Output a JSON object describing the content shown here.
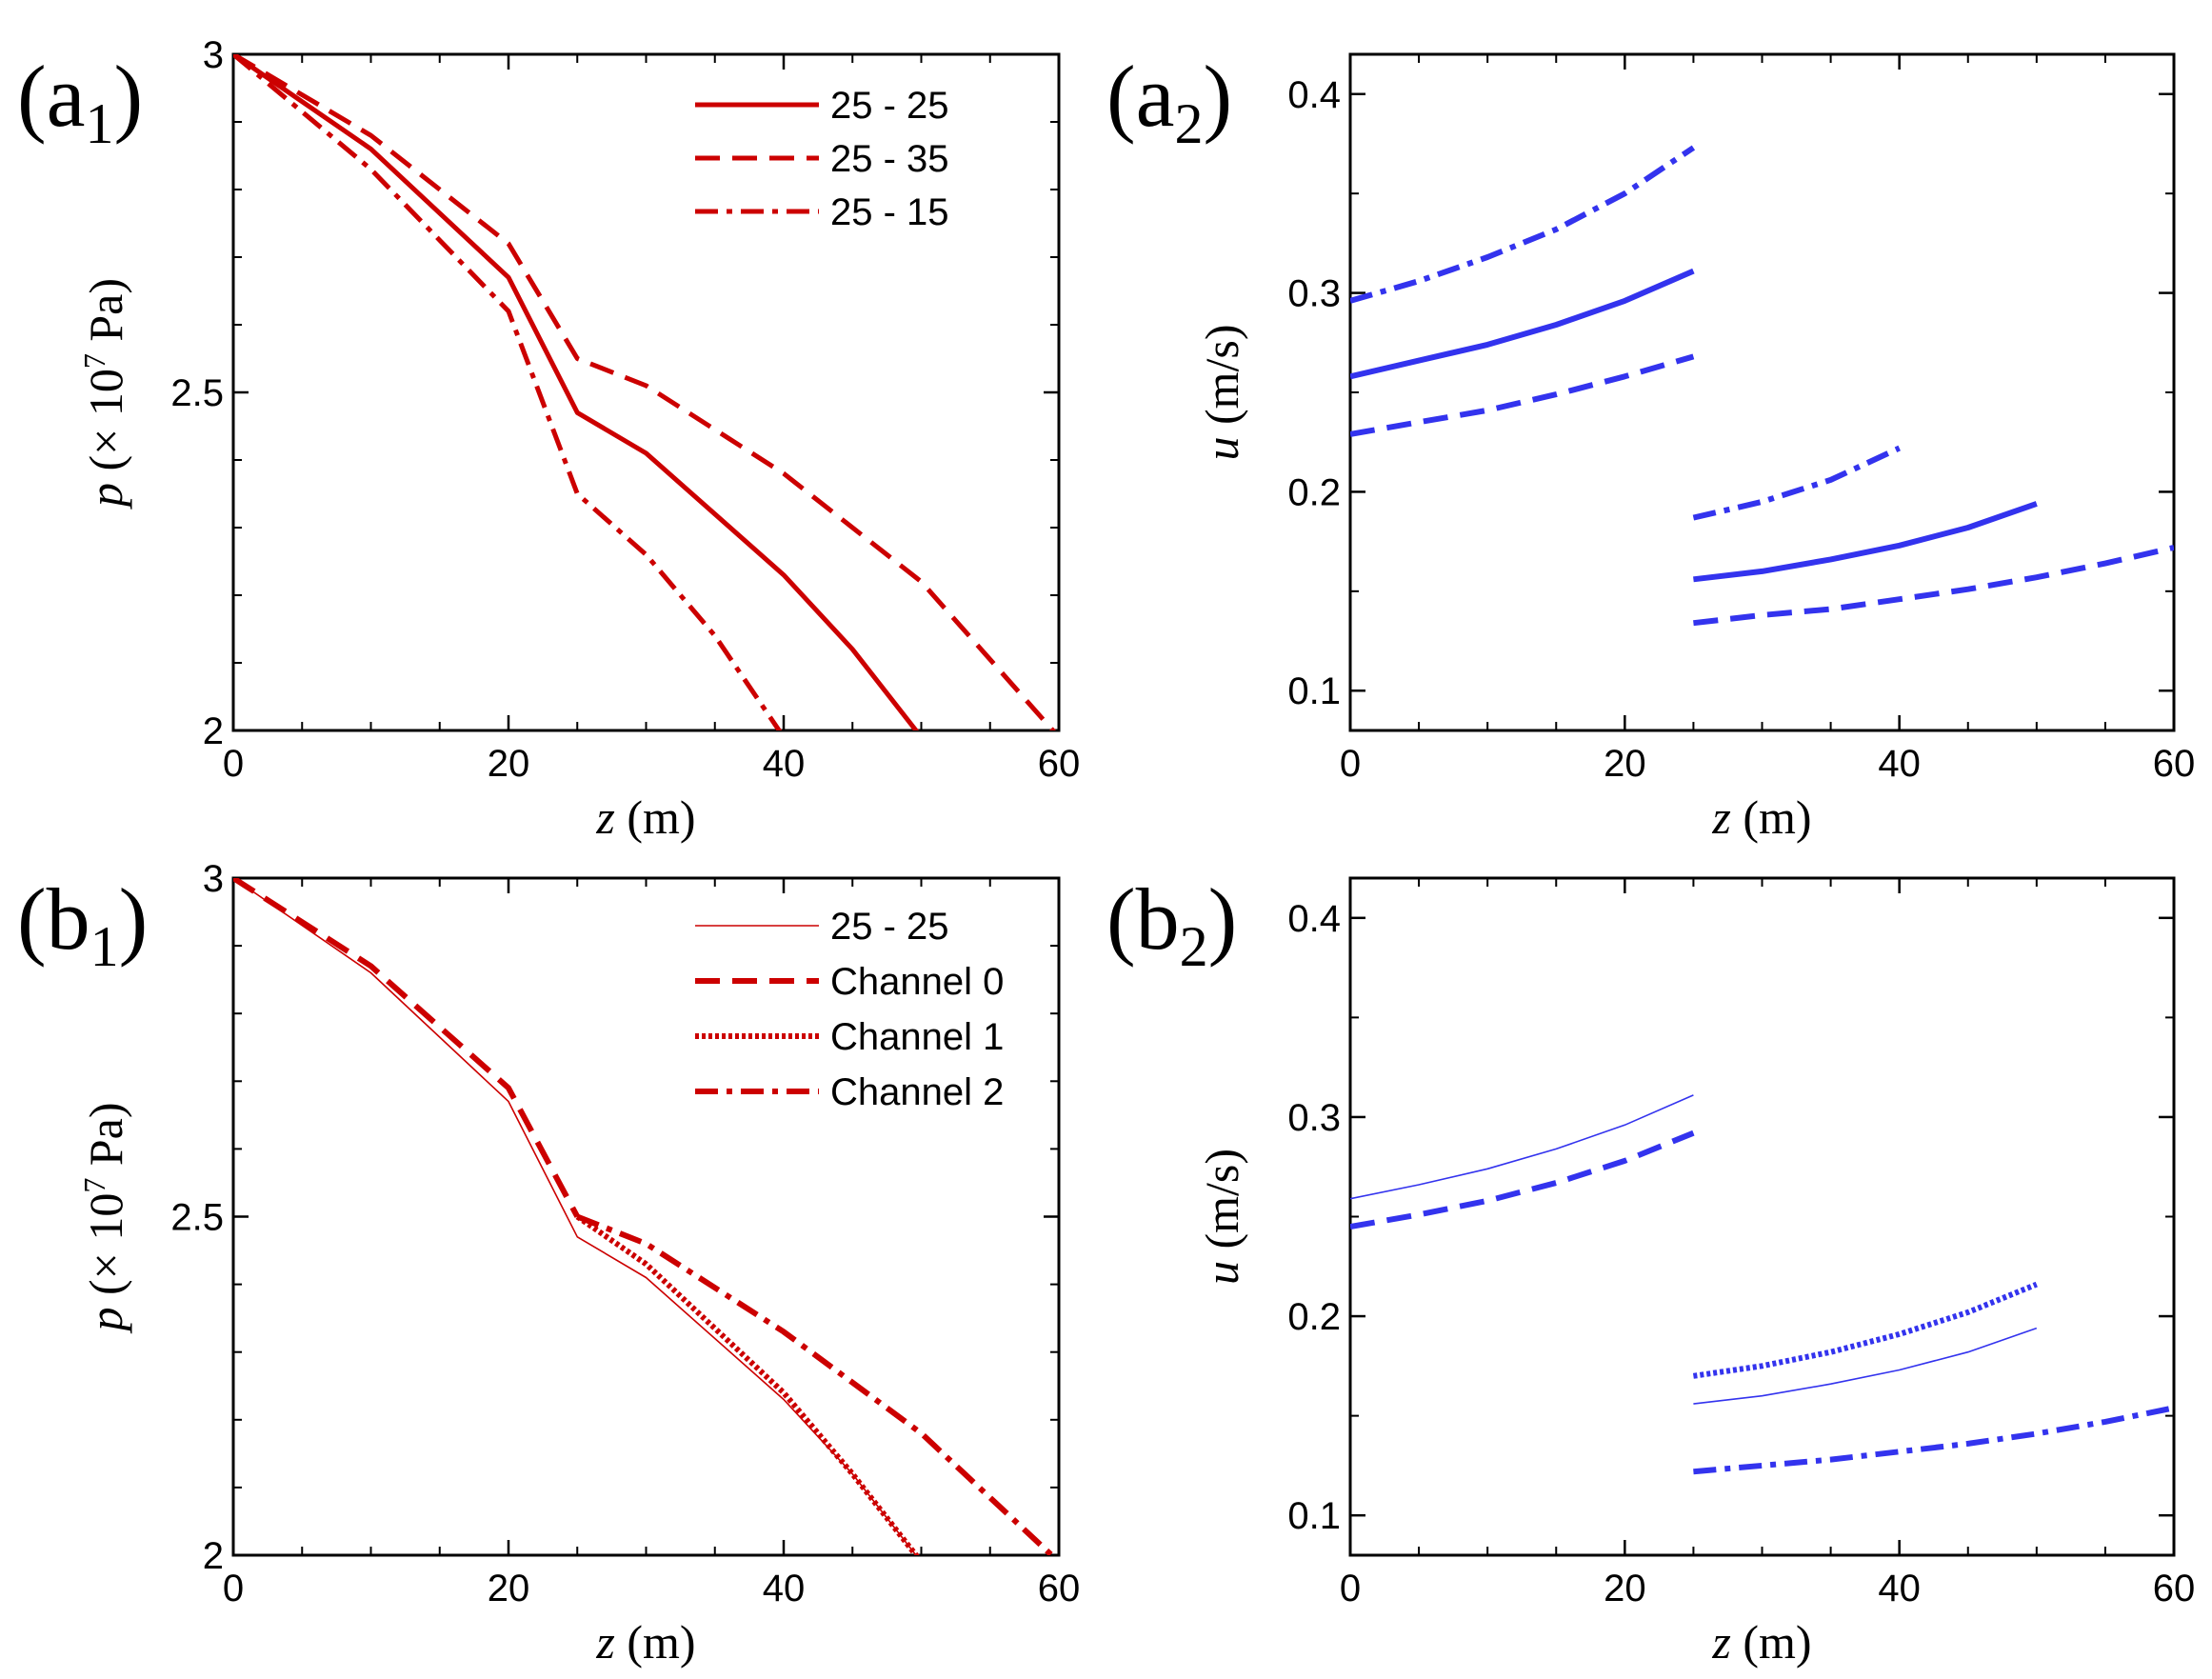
{
  "chart_data": [
    {
      "id": "a1",
      "type": "line",
      "panel_label": {
        "main": "(a",
        "sub": "1",
        "close": ")"
      },
      "xlabel": {
        "var": "z",
        "unit": " (m)"
      },
      "ylabel": {
        "var": "p",
        "pre": " (× 10",
        "exp": "7",
        "post": " Pa)"
      },
      "xlim": [
        0,
        60
      ],
      "ylim": [
        2,
        3
      ],
      "xticks": [
        0,
        20,
        40,
        60
      ],
      "xtick_labels": [
        "0",
        "20",
        "40",
        "60"
      ],
      "yticks": [
        2,
        2.5,
        3
      ],
      "ytick_labels": [
        "2",
        "2.5",
        "3"
      ],
      "legend_position": "top-right",
      "series": [
        {
          "name": "25 - 25",
          "style": "solid",
          "width": 5,
          "color": "#cc0000",
          "segments": [
            [
              [
                0,
                3
              ],
              [
                10,
                2.86
              ],
              [
                20,
                2.67
              ],
              [
                25,
                2.47
              ],
              [
                30,
                2.41
              ],
              [
                40,
                2.23
              ],
              [
                45,
                2.12
              ],
              [
                50,
                1.99
              ]
            ]
          ]
        },
        {
          "name": "25 - 35",
          "style": "dash",
          "width": 5,
          "color": "#cc0000",
          "segments": [
            [
              [
                0,
                3
              ],
              [
                10,
                2.88
              ],
              [
                20,
                2.72
              ],
              [
                25,
                2.55
              ],
              [
                30,
                2.51
              ],
              [
                40,
                2.38
              ],
              [
                50,
                2.22
              ],
              [
                60,
                1.99
              ]
            ]
          ]
        },
        {
          "name": "25 - 15",
          "style": "dashdot",
          "width": 5,
          "color": "#cc0000",
          "segments": [
            [
              [
                0,
                3
              ],
              [
                10,
                2.83
              ],
              [
                20,
                2.62
              ],
              [
                25,
                2.35
              ],
              [
                30,
                2.26
              ],
              [
                35,
                2.14
              ],
              [
                40,
                1.99
              ]
            ]
          ]
        }
      ]
    },
    {
      "id": "a2",
      "type": "line",
      "panel_label": {
        "main": "(a",
        "sub": "2",
        "close": ")"
      },
      "xlabel": {
        "var": "z",
        "unit": " (m)"
      },
      "ylabel": {
        "var": "u",
        "pre": " (m/s)",
        "exp": "",
        "post": ""
      },
      "xlim": [
        0,
        60
      ],
      "ylim": [
        0.08,
        0.42
      ],
      "xticks": [
        0,
        20,
        40,
        60
      ],
      "xtick_labels": [
        "0",
        "20",
        "40",
        "60"
      ],
      "yticks": [
        0.1,
        0.2,
        0.3,
        0.4
      ],
      "ytick_labels": [
        "0.1",
        "0.2",
        "0.3",
        "0.4"
      ],
      "series": [
        {
          "name": "25 - 25",
          "style": "solid",
          "width": 6,
          "color": "#3333ee",
          "segments": [
            [
              [
                0,
                0.258
              ],
              [
                5,
                0.266
              ],
              [
                10,
                0.274
              ],
              [
                15,
                0.284
              ],
              [
                20,
                0.296
              ],
              [
                25,
                0.311
              ]
            ],
            [
              [
                25,
                0.156
              ],
              [
                30,
                0.16
              ],
              [
                35,
                0.166
              ],
              [
                40,
                0.173
              ],
              [
                45,
                0.182
              ],
              [
                50,
                0.194
              ]
            ]
          ]
        },
        {
          "name": "25 - 35",
          "style": "dash",
          "width": 6,
          "color": "#3333ee",
          "segments": [
            [
              [
                0,
                0.229
              ],
              [
                5,
                0.235
              ],
              [
                10,
                0.241
              ],
              [
                15,
                0.249
              ],
              [
                20,
                0.258
              ],
              [
                25,
                0.268
              ]
            ],
            [
              [
                25,
                0.134
              ],
              [
                30,
                0.138
              ],
              [
                35,
                0.141
              ],
              [
                40,
                0.146
              ],
              [
                45,
                0.151
              ],
              [
                50,
                0.157
              ],
              [
                55,
                0.164
              ],
              [
                60,
                0.172
              ]
            ]
          ]
        },
        {
          "name": "25 - 15",
          "style": "dashdot",
          "width": 6,
          "color": "#3333ee",
          "segments": [
            [
              [
                0,
                0.296
              ],
              [
                5,
                0.306
              ],
              [
                10,
                0.318
              ],
              [
                15,
                0.332
              ],
              [
                20,
                0.35
              ],
              [
                25,
                0.373
              ]
            ],
            [
              [
                25,
                0.187
              ],
              [
                30,
                0.195
              ],
              [
                35,
                0.206
              ],
              [
                40,
                0.222
              ]
            ]
          ]
        }
      ]
    },
    {
      "id": "b1",
      "type": "line",
      "panel_label": {
        "main": "(b",
        "sub": "1",
        "close": ")"
      },
      "xlabel": {
        "var": "z",
        "unit": " (m)"
      },
      "ylabel": {
        "var": "p",
        "pre": " (× 10",
        "exp": "7",
        "post": " Pa)"
      },
      "xlim": [
        0,
        60
      ],
      "ylim": [
        2,
        3
      ],
      "xticks": [
        0,
        20,
        40,
        60
      ],
      "xtick_labels": [
        "0",
        "20",
        "40",
        "60"
      ],
      "yticks": [
        2,
        2.5,
        3
      ],
      "ytick_labels": [
        "2",
        "2.5",
        "3"
      ],
      "legend_position": "top-right",
      "series": [
        {
          "name": "25 - 25",
          "style": "thin",
          "width": 1.6,
          "color": "#cc0000",
          "segments": [
            [
              [
                0,
                3
              ],
              [
                10,
                2.86
              ],
              [
                20,
                2.67
              ],
              [
                25,
                2.47
              ],
              [
                30,
                2.41
              ],
              [
                40,
                2.23
              ],
              [
                45,
                2.12
              ],
              [
                50,
                1.99
              ]
            ]
          ]
        },
        {
          "name": "Channel 0",
          "style": "dash",
          "width": 6,
          "color": "#cc0000",
          "segments": [
            [
              [
                0,
                3
              ],
              [
                10,
                2.87
              ],
              [
                20,
                2.69
              ],
              [
                25,
                2.5
              ]
            ]
          ]
        },
        {
          "name": "Channel 1",
          "style": "dot",
          "width": 6,
          "color": "#cc0000",
          "segments": [
            [
              [
                25,
                2.5
              ],
              [
                30,
                2.43
              ],
              [
                40,
                2.24
              ],
              [
                45,
                2.12
              ],
              [
                50,
                1.99
              ]
            ]
          ]
        },
        {
          "name": "Channel 2",
          "style": "dashdot",
          "width": 6,
          "color": "#cc0000",
          "segments": [
            [
              [
                25,
                2.5
              ],
              [
                30,
                2.46
              ],
              [
                40,
                2.33
              ],
              [
                50,
                2.18
              ],
              [
                60,
                1.99
              ]
            ]
          ]
        }
      ]
    },
    {
      "id": "b2",
      "type": "line",
      "panel_label": {
        "main": "(b",
        "sub": "2",
        "close": ")"
      },
      "xlabel": {
        "var": "z",
        "unit": " (m)"
      },
      "ylabel": {
        "var": "u",
        "pre": " (m/s)",
        "exp": "",
        "post": ""
      },
      "xlim": [
        0,
        60
      ],
      "ylim": [
        0.08,
        0.42
      ],
      "xticks": [
        0,
        20,
        40,
        60
      ],
      "xtick_labels": [
        "0",
        "20",
        "40",
        "60"
      ],
      "yticks": [
        0.1,
        0.2,
        0.3,
        0.4
      ],
      "ytick_labels": [
        "0.1",
        "0.2",
        "0.3",
        "0.4"
      ],
      "series": [
        {
          "name": "25 - 25",
          "style": "thin",
          "width": 1.6,
          "color": "#3333ee",
          "segments": [
            [
              [
                0,
                0.259
              ],
              [
                5,
                0.266
              ],
              [
                10,
                0.274
              ],
              [
                15,
                0.284
              ],
              [
                20,
                0.296
              ],
              [
                25,
                0.311
              ]
            ],
            [
              [
                25,
                0.156
              ],
              [
                30,
                0.16
              ],
              [
                35,
                0.166
              ],
              [
                40,
                0.173
              ],
              [
                45,
                0.182
              ],
              [
                50,
                0.194
              ]
            ]
          ]
        },
        {
          "name": "Channel 0",
          "style": "dash",
          "width": 6,
          "color": "#3333ee",
          "segments": [
            [
              [
                0,
                0.245
              ],
              [
                5,
                0.251
              ],
              [
                10,
                0.258
              ],
              [
                15,
                0.267
              ],
              [
                20,
                0.278
              ],
              [
                25,
                0.292
              ]
            ]
          ]
        },
        {
          "name": "Channel 1",
          "style": "dot",
          "width": 6,
          "color": "#3333ee",
          "segments": [
            [
              [
                25,
                0.17
              ],
              [
                30,
                0.175
              ],
              [
                35,
                0.182
              ],
              [
                40,
                0.191
              ],
              [
                45,
                0.202
              ],
              [
                50,
                0.216
              ]
            ]
          ]
        },
        {
          "name": "Channel 2",
          "style": "dashdot",
          "width": 6,
          "color": "#3333ee",
          "segments": [
            [
              [
                25,
                0.122
              ],
              [
                30,
                0.125
              ],
              [
                35,
                0.128
              ],
              [
                40,
                0.132
              ],
              [
                45,
                0.136
              ],
              [
                50,
                0.141
              ],
              [
                55,
                0.147
              ],
              [
                60,
                0.154
              ]
            ]
          ]
        }
      ]
    }
  ]
}
